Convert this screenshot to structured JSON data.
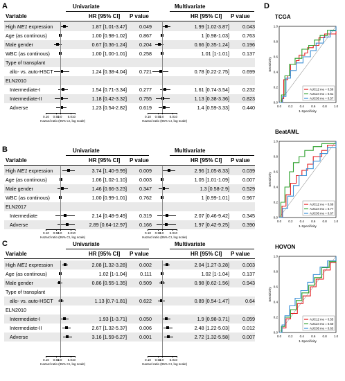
{
  "panel_a": {
    "label": "A",
    "col_variable": "Variable",
    "col_hr": "HR [95% CI]",
    "col_p": "P value",
    "univariate": "Univariate",
    "multivariate": "Multivariate",
    "axis_title": "Hazard ratio (95% CI, log scale)",
    "axis_ticks": [
      "0.10",
      "0.50",
      "1.0",
      "5.0",
      "10"
    ],
    "rows": [
      {
        "var": "High ME1 expression",
        "hr1": "1.87 [1.01-3.47]",
        "p1": "0.049",
        "hr2": "1.99 [1.02-3.87]",
        "p2": "0.043"
      },
      {
        "var": "Age (as continous)",
        "hr1": "1.00 [0.98-1.02]",
        "p1": "0.867",
        "hr2": "1 [0.98-1.03]",
        "p2": "0.763"
      },
      {
        "var": "Male gender",
        "hr1": "0.67 [0.36-1.24]",
        "p1": "0.204",
        "hr2": "0.66 [0.35-1.24]",
        "p2": "0.196"
      },
      {
        "var": "WBC (as continous)",
        "hr1": "1.00 [1.00-1.01]",
        "p1": "0.258",
        "hr2": "1.01 [1-1.01]",
        "p2": "0.137"
      },
      {
        "var": "Type of transplant",
        "hr1": "",
        "p1": "",
        "hr2": "",
        "p2": ""
      },
      {
        "var": "allo- vs. auto-HSCT",
        "hr1": "1.24 [0.38-4.04]",
        "p1": "0.721",
        "hr2": "0.78 [0.22-2.75]",
        "p2": "0.699"
      },
      {
        "var": "ELN2010",
        "hr1": "",
        "p1": "",
        "hr2": "",
        "p2": ""
      },
      {
        "var": "Intermediate-I",
        "hr1": "1.54 [0.71-3.34]",
        "p1": "0.277",
        "hr2": "1.61 [0.74-3.54]",
        "p2": "0.232"
      },
      {
        "var": "Intermediate-II",
        "hr1": "1.18 [0.42-3.32]",
        "p1": "0.755",
        "hr2": "1.13 [0.38-3.36]",
        "p2": "0.823"
      },
      {
        "var": "Adverse",
        "hr1": "1.23 [0.54-2.82]",
        "p1": "0.619",
        "hr2": "1.4 [0.59-3.33]",
        "p2": "0.440"
      }
    ]
  },
  "panel_b": {
    "label": "B",
    "col_variable": "Variable",
    "col_hr": "HR [95% CI]",
    "col_p": "P value",
    "univariate": "Univariate",
    "multivariate": "Multivariate",
    "axis_title": "Hazard ratio (95% CI, log scale)",
    "axis_ticks": [
      "0.10",
      "0.50",
      "1.0",
      "5.0",
      "10"
    ],
    "rows": [
      {
        "var": "High ME1 expression",
        "hr1": "3.74 [1.40-9.99]",
        "p1": "0.009",
        "hr2": "2.96 [1.05-8.33]",
        "p2": "0.039"
      },
      {
        "var": "Age (as continous)",
        "hr1": "1.06 [1.02-1.10]",
        "p1": "0.003",
        "hr2": "1.05 [1.01-1.09]",
        "p2": "0.007"
      },
      {
        "var": "Male gender",
        "hr1": "1.46 [0.66-3.23]",
        "p1": "0.347",
        "hr2": "1.3 [0.58-2.9]",
        "p2": "0.529"
      },
      {
        "var": "WBC (as continous)",
        "hr1": "1.00 [0.99-1.01]",
        "p1": "0.762",
        "hr2": "1 [0.99-1.01]",
        "p2": "0.967"
      },
      {
        "var": "ELN2017",
        "hr1": "",
        "p1": "",
        "hr2": "",
        "p2": ""
      },
      {
        "var": "Intermediate",
        "hr1": "2.14 [0.48-9.49]",
        "p1": "0.319",
        "hr2": "2.07 [0.46-9.42]",
        "p2": "0.345"
      },
      {
        "var": "Adverse",
        "hr1": "2.89 [0.64-12.97]",
        "p1": "0.166",
        "hr2": "1.97 [0.42-9.25]",
        "p2": "0.390"
      }
    ]
  },
  "panel_c": {
    "label": "C",
    "col_variable": "Variable",
    "col_hr": "HR [95% CI]",
    "col_p": "P value",
    "univariate": "Univariate",
    "multivariate": "Multivariate",
    "axis_title": "Hazard ratio (95% CI, log scale)",
    "axis_ticks": [
      "0.10",
      "0.50",
      "1.0",
      "5.0",
      "10"
    ],
    "rows": [
      {
        "var": "High ME1 expression",
        "hr1": "2.08 [1.32-3.28]",
        "p1": "0.002",
        "hr2": "2.04 [1.27-3.28]",
        "p2": "0.003"
      },
      {
        "var": "Age (as continous)",
        "hr1": "1.02 [1-1.04]",
        "p1": "0.111",
        "hr2": "1.02 [1-1.04]",
        "p2": "0.137"
      },
      {
        "var": "Male gender",
        "hr1": "0.86 [0.55-1.35]",
        "p1": "0.509",
        "hr2": "0.98 [0.62-1.56]",
        "p2": "0.943"
      },
      {
        "var": "Type of transplant",
        "hr1": "",
        "p1": "",
        "hr2": "",
        "p2": ""
      },
      {
        "var": "allo- vs. auto-HSCT",
        "hr1": "1.13 [0.7-1.81]",
        "p1": "0.622",
        "hr2": "0.89 [0.54-1.47]",
        "p2": "0.64"
      },
      {
        "var": "ELN2010",
        "hr1": "",
        "p1": "",
        "hr2": "",
        "p2": ""
      },
      {
        "var": "Intermediate-I",
        "hr1": "1.93 [1-3.71]",
        "p1": "0.050",
        "hr2": "1.9 [0.98-3.71]",
        "p2": "0.059"
      },
      {
        "var": "Intermediate-II",
        "hr1": "2.67 [1.32-5.37]",
        "p1": "0.006",
        "hr2": "2.48 [1.22-5.03]",
        "p2": "0.012"
      },
      {
        "var": "Adverse",
        "hr1": "3.16 [1.59-6.27]",
        "p1": "0.001",
        "hr2": "2.72 [1.32-5.58]",
        "p2": "0.007"
      }
    ]
  },
  "panel_d": {
    "label": "D",
    "xlabel": "1-Specificity",
    "ylabel": "Sensitivity",
    "ticks": [
      "0.0",
      "0.2",
      "0.4",
      "0.6",
      "0.8",
      "1.0"
    ],
    "colors": {
      "red": "#e41a1c",
      "green": "#2ca02c",
      "blue": "#3a8fd6"
    },
    "plots": [
      {
        "title": "TCGA",
        "legend": [
          "AUC12 mo = 0.56",
          "AUC24 mo = 0.61",
          "AUC36 mo = 0.57"
        ]
      },
      {
        "title": "BeatAML",
        "legend": [
          "AUC12 mo = 0.69",
          "AUC24 mo = 0.77",
          "AUC36 mo = 0.67"
        ]
      },
      {
        "title": "HOVON",
        "legend": [
          "AUC12 mo = 0.55",
          "AUC24 mo = 0.60",
          "AUC36 mo = 0.63"
        ]
      }
    ]
  }
}
